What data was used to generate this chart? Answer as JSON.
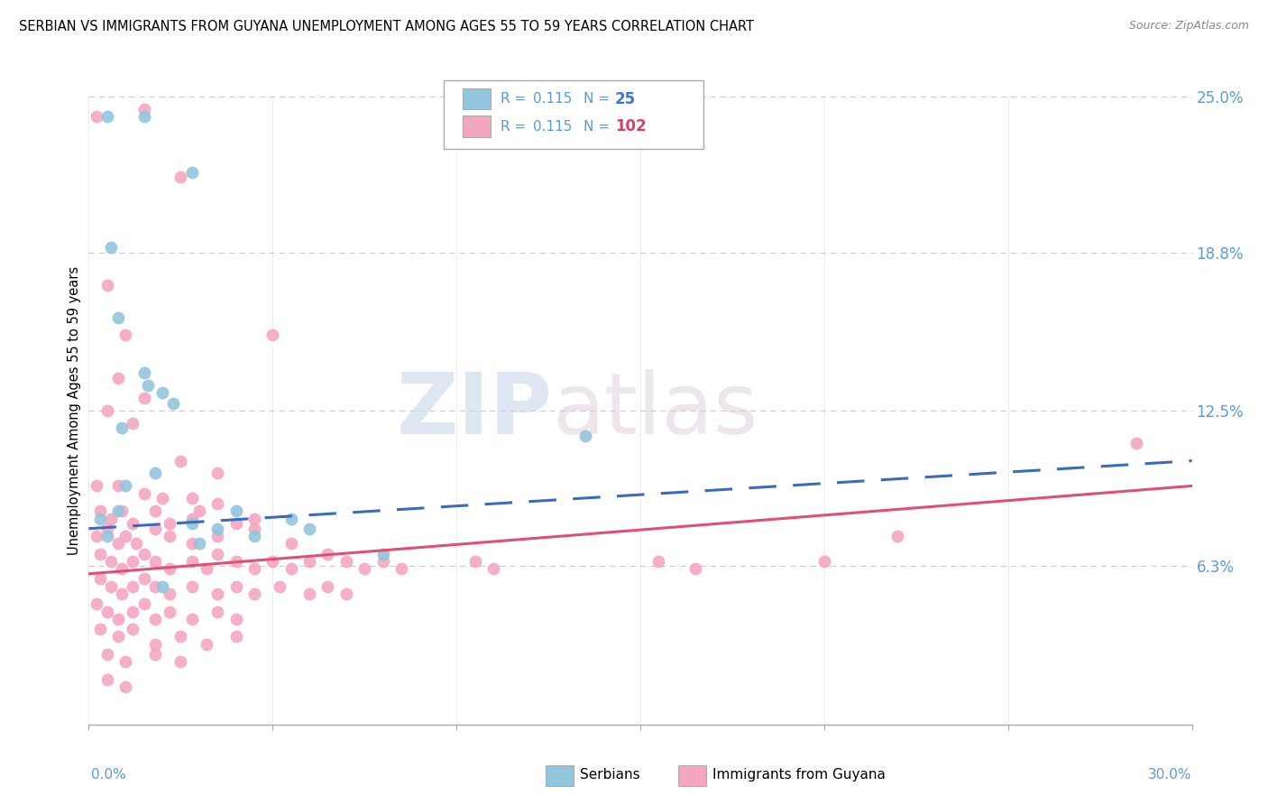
{
  "title": "SERBIAN VS IMMIGRANTS FROM GUYANA UNEMPLOYMENT AMONG AGES 55 TO 59 YEARS CORRELATION CHART",
  "source": "Source: ZipAtlas.com",
  "ylabel": "Unemployment Among Ages 55 to 59 years",
  "xlim": [
    0.0,
    30.0
  ],
  "ylim": [
    0.0,
    25.0
  ],
  "yticks": [
    0.0,
    6.3,
    12.5,
    18.8,
    25.0
  ],
  "ytick_labels": [
    "",
    "6.3%",
    "12.5%",
    "18.8%",
    "25.0%"
  ],
  "legend_serbian_R": "0.115",
  "legend_serbian_N": "25",
  "legend_guyana_R": "0.115",
  "legend_guyana_N": "102",
  "serbian_color": "#92c5de",
  "guyana_color": "#f4a6c0",
  "serbian_line_color": "#3a6bbf",
  "guyana_line_color": "#e05070",
  "watermark_zip": "ZIP",
  "watermark_atlas": "atlas",
  "xtick_positions": [
    0.0,
    5.0,
    10.0,
    15.0,
    20.0,
    25.0,
    30.0
  ],
  "grid_color": "#cccccc",
  "background_color": "#ffffff",
  "title_fontsize": 11,
  "axis_label_color": "#5b9bd5",
  "legend_R_color": "#5b9bd5",
  "legend_N_serbian_color": "#4472c4",
  "legend_N_guyana_color": "#d64068",
  "serbian_points": [
    [
      0.5,
      24.2
    ],
    [
      1.5,
      24.2
    ],
    [
      2.8,
      22.0
    ],
    [
      0.6,
      19.0
    ],
    [
      0.8,
      16.2
    ],
    [
      1.5,
      14.0
    ],
    [
      1.6,
      13.5
    ],
    [
      2.0,
      13.2
    ],
    [
      2.3,
      12.8
    ],
    [
      0.9,
      11.8
    ],
    [
      1.0,
      9.5
    ],
    [
      1.8,
      10.0
    ],
    [
      4.0,
      8.5
    ],
    [
      5.5,
      8.2
    ],
    [
      0.3,
      8.2
    ],
    [
      0.8,
      8.5
    ],
    [
      2.8,
      8.0
    ],
    [
      3.5,
      7.8
    ],
    [
      0.5,
      7.5
    ],
    [
      3.0,
      7.2
    ],
    [
      4.5,
      7.5
    ],
    [
      6.0,
      7.8
    ],
    [
      8.0,
      6.8
    ],
    [
      2.0,
      5.5
    ],
    [
      13.5,
      11.5
    ]
  ],
  "guyana_points": [
    [
      0.2,
      24.2
    ],
    [
      1.5,
      24.5
    ],
    [
      2.5,
      21.8
    ],
    [
      0.5,
      17.5
    ],
    [
      1.0,
      15.5
    ],
    [
      0.8,
      13.8
    ],
    [
      1.5,
      13.0
    ],
    [
      5.0,
      15.5
    ],
    [
      0.5,
      12.5
    ],
    [
      1.2,
      12.0
    ],
    [
      2.5,
      10.5
    ],
    [
      3.5,
      10.0
    ],
    [
      0.2,
      9.5
    ],
    [
      0.8,
      9.5
    ],
    [
      1.5,
      9.2
    ],
    [
      2.0,
      9.0
    ],
    [
      2.8,
      9.0
    ],
    [
      3.5,
      8.8
    ],
    [
      0.3,
      8.5
    ],
    [
      0.6,
      8.2
    ],
    [
      0.9,
      8.5
    ],
    [
      1.2,
      8.0
    ],
    [
      1.8,
      8.5
    ],
    [
      2.2,
      8.0
    ],
    [
      2.8,
      8.2
    ],
    [
      3.0,
      8.5
    ],
    [
      4.0,
      8.0
    ],
    [
      4.5,
      8.2
    ],
    [
      0.2,
      7.5
    ],
    [
      0.5,
      7.8
    ],
    [
      0.8,
      7.2
    ],
    [
      1.0,
      7.5
    ],
    [
      1.3,
      7.2
    ],
    [
      1.8,
      7.8
    ],
    [
      2.2,
      7.5
    ],
    [
      2.8,
      7.2
    ],
    [
      3.5,
      7.5
    ],
    [
      4.5,
      7.8
    ],
    [
      5.5,
      7.2
    ],
    [
      0.3,
      6.8
    ],
    [
      0.6,
      6.5
    ],
    [
      0.9,
      6.2
    ],
    [
      1.2,
      6.5
    ],
    [
      1.5,
      6.8
    ],
    [
      1.8,
      6.5
    ],
    [
      2.2,
      6.2
    ],
    [
      2.8,
      6.5
    ],
    [
      3.2,
      6.2
    ],
    [
      3.5,
      6.8
    ],
    [
      4.0,
      6.5
    ],
    [
      4.5,
      6.2
    ],
    [
      5.0,
      6.5
    ],
    [
      5.5,
      6.2
    ],
    [
      6.0,
      6.5
    ],
    [
      6.5,
      6.8
    ],
    [
      7.0,
      6.5
    ],
    [
      7.5,
      6.2
    ],
    [
      8.0,
      6.5
    ],
    [
      8.5,
      6.2
    ],
    [
      0.3,
      5.8
    ],
    [
      0.6,
      5.5
    ],
    [
      0.9,
      5.2
    ],
    [
      1.2,
      5.5
    ],
    [
      1.5,
      5.8
    ],
    [
      1.8,
      5.5
    ],
    [
      2.2,
      5.2
    ],
    [
      2.8,
      5.5
    ],
    [
      3.5,
      5.2
    ],
    [
      4.0,
      5.5
    ],
    [
      4.5,
      5.2
    ],
    [
      5.2,
      5.5
    ],
    [
      6.0,
      5.2
    ],
    [
      6.5,
      5.5
    ],
    [
      7.0,
      5.2
    ],
    [
      0.2,
      4.8
    ],
    [
      0.5,
      4.5
    ],
    [
      0.8,
      4.2
    ],
    [
      1.2,
      4.5
    ],
    [
      1.5,
      4.8
    ],
    [
      1.8,
      4.2
    ],
    [
      2.2,
      4.5
    ],
    [
      2.8,
      4.2
    ],
    [
      3.5,
      4.5
    ],
    [
      4.0,
      4.2
    ],
    [
      0.3,
      3.8
    ],
    [
      0.8,
      3.5
    ],
    [
      1.2,
      3.8
    ],
    [
      1.8,
      3.2
    ],
    [
      2.5,
      3.5
    ],
    [
      3.2,
      3.2
    ],
    [
      4.0,
      3.5
    ],
    [
      0.5,
      2.8
    ],
    [
      1.0,
      2.5
    ],
    [
      1.8,
      2.8
    ],
    [
      2.5,
      2.5
    ],
    [
      0.5,
      1.8
    ],
    [
      1.0,
      1.5
    ],
    [
      10.5,
      6.5
    ],
    [
      11.0,
      6.2
    ],
    [
      15.5,
      6.5
    ],
    [
      16.5,
      6.2
    ],
    [
      20.0,
      6.5
    ],
    [
      22.0,
      7.5
    ],
    [
      28.5,
      11.2
    ]
  ],
  "serbian_line": [
    [
      0.0,
      7.8
    ],
    [
      30.0,
      10.5
    ]
  ],
  "guyana_line": [
    [
      0.0,
      6.0
    ],
    [
      30.0,
      9.5
    ]
  ]
}
